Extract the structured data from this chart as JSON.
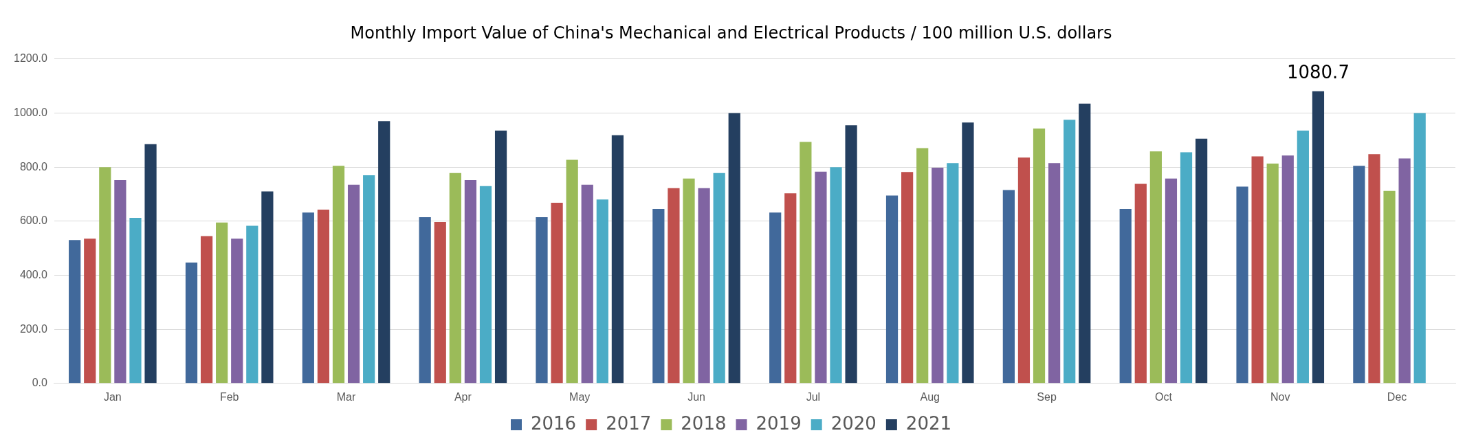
{
  "chart_data": {
    "type": "bar",
    "title": "Monthly Import Value of China's Mechanical and Electrical Products / 100 million U.S. dollars",
    "categories": [
      "Jan",
      "Feb",
      "Mar",
      "Apr",
      "May",
      "Jun",
      "Jul",
      "Aug",
      "Sep",
      "Oct",
      "Nov",
      "Dec"
    ],
    "series": [
      {
        "name": "2016",
        "color": "#41699b",
        "values": [
          530,
          447,
          632,
          615,
          615,
          645,
          632,
          695,
          715,
          645,
          728,
          805
        ]
      },
      {
        "name": "2017",
        "color": "#c0504d",
        "values": [
          535,
          545,
          643,
          597,
          668,
          722,
          703,
          782,
          835,
          738,
          840,
          848
        ]
      },
      {
        "name": "2018",
        "color": "#9bbb59",
        "values": [
          800,
          595,
          805,
          778,
          827,
          758,
          893,
          870,
          943,
          858,
          813,
          712
        ]
      },
      {
        "name": "2019",
        "color": "#8064a2",
        "values": [
          752,
          535,
          735,
          752,
          735,
          722,
          783,
          798,
          815,
          758,
          843,
          832
        ]
      },
      {
        "name": "2020",
        "color": "#4bacc6",
        "values": [
          612,
          583,
          770,
          730,
          680,
          778,
          800,
          815,
          975,
          855,
          935,
          1000
        ]
      },
      {
        "name": "2021",
        "color": "#243f60",
        "values": [
          885,
          710,
          970,
          935,
          918,
          1000,
          955,
          965,
          1035,
          905,
          1080.7,
          null
        ],
        "value_labels": [
          null,
          null,
          null,
          null,
          null,
          null,
          null,
          null,
          null,
          null,
          "1080.7",
          null
        ]
      }
    ],
    "ylim": [
      0,
      1200
    ],
    "yticks": [
      {
        "value": 0,
        "label": "0.0"
      },
      {
        "value": 200,
        "label": "200.0"
      },
      {
        "value": 400,
        "label": "400.0"
      },
      {
        "value": 600,
        "label": "600.0"
      },
      {
        "value": 800,
        "label": "800.0"
      },
      {
        "value": 1000,
        "label": "1000.0"
      },
      {
        "value": 1200,
        "label": "1200.0"
      }
    ],
    "grid": "y",
    "legend": "bottom"
  }
}
